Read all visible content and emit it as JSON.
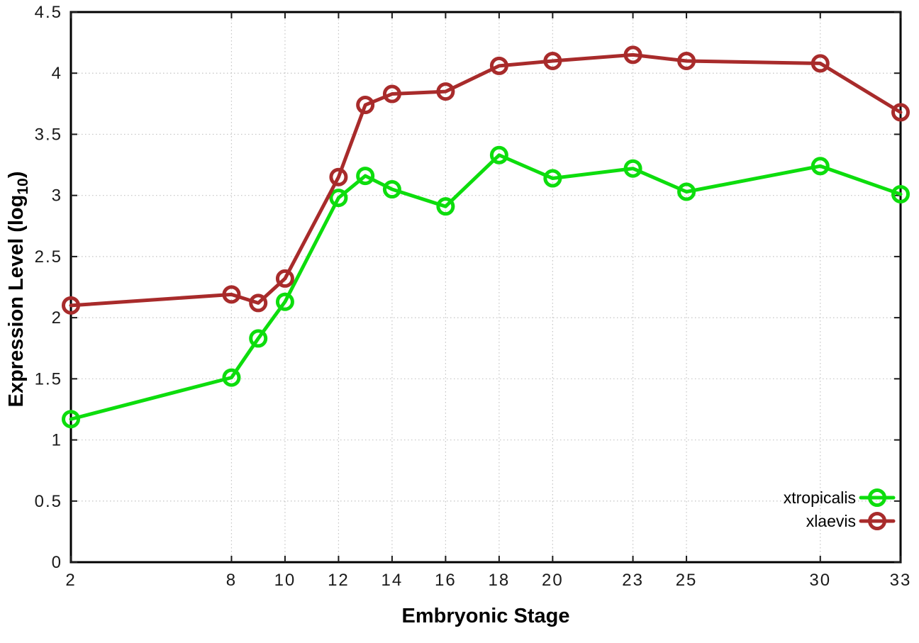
{
  "chart_data": {
    "type": "line",
    "title": "",
    "xlabel": "Embryonic Stage",
    "ylabel": "Expression Level (log10)",
    "xlim": [
      2,
      33
    ],
    "ylim": [
      0,
      4.5
    ],
    "grid": true,
    "legend_position": "inside-bottom-right",
    "x": [
      2,
      8,
      9,
      10,
      12,
      13,
      14,
      16,
      18,
      20,
      23,
      25,
      30,
      33
    ],
    "xticks": [
      2,
      8,
      10,
      12,
      14,
      16,
      18,
      20,
      23,
      25,
      30,
      33
    ],
    "xtick_labels": [
      "2",
      "8",
      "10",
      "12",
      "14",
      "16",
      "18",
      "20",
      "23",
      "25",
      "30",
      "33"
    ],
    "yticks": [
      0,
      0.5,
      1,
      1.5,
      2,
      2.5,
      3,
      3.5,
      4,
      4.5
    ],
    "ytick_labels": [
      "0",
      "0.5",
      "1",
      "1.5",
      "2",
      "2.5",
      "3",
      "3.5",
      "4",
      "4.5"
    ],
    "series": [
      {
        "name": "xtropicalis",
        "color": "#0ddd0d",
        "values": [
          1.17,
          1.51,
          1.83,
          2.13,
          2.98,
          3.16,
          3.05,
          2.91,
          3.33,
          3.14,
          3.22,
          3.03,
          3.24,
          3.01
        ]
      },
      {
        "name": "xlaevis",
        "color": "#a82b2b",
        "values": [
          2.1,
          2.19,
          2.12,
          2.32,
          3.15,
          3.74,
          3.83,
          3.85,
          4.06,
          4.1,
          4.15,
          4.1,
          4.08,
          3.68
        ]
      }
    ]
  },
  "labels": {
    "xlabel": "Embryonic Stage",
    "ylabel_main": "Expression Level (log",
    "ylabel_sub": "10",
    "ylabel_close": ")"
  },
  "colors": {
    "background": "#ffffff",
    "axis": "#000000",
    "grid": "#c4c4c4",
    "xtropicalis": "#0ddd0d",
    "xlaevis": "#a82b2b"
  }
}
